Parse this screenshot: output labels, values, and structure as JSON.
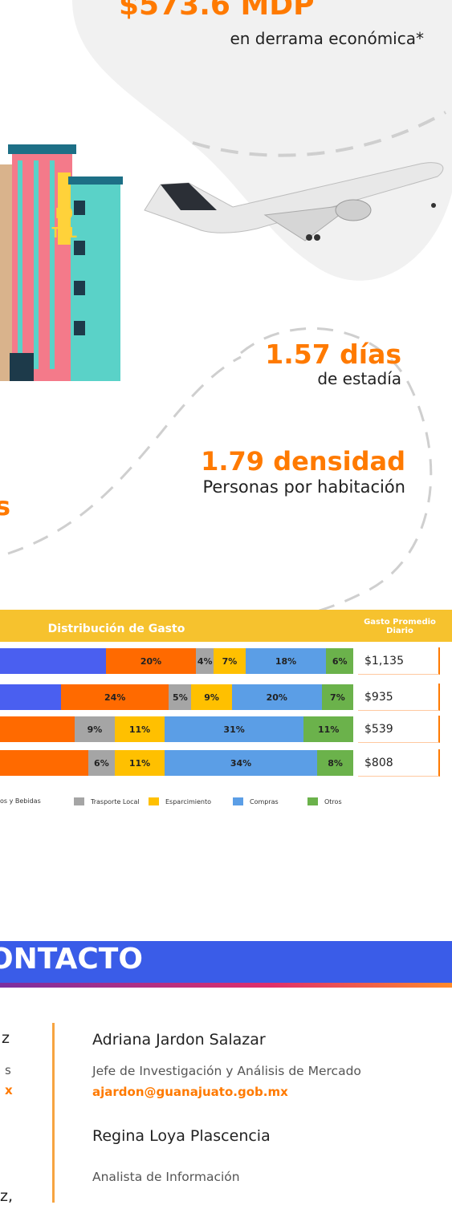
{
  "stats": {
    "amount": "$573.6 MDP",
    "amount_caption": "en derrama económica*",
    "stay": "1.57 días",
    "stay_caption": "de estadía",
    "density": "1.79 densidad",
    "density_caption": "Personas por habitación",
    "partial": "s"
  },
  "hotel_sign": [
    "HO",
    "TEL"
  ],
  "spending": {
    "title": "Distribución de Gasto",
    "daily_header": "Gasto Promedio Diario",
    "rows": [
      {
        "segments": [
          {
            "value": 20,
            "label": "20%",
            "color": "#ff6a00"
          },
          {
            "value": 4,
            "label": "4%",
            "color": "#a5a5a5"
          },
          {
            "value": 7,
            "label": "7%",
            "color": "#ffc000"
          },
          {
            "value": 18,
            "label": "18%",
            "color": "#5b9ee6"
          },
          {
            "value": 6,
            "label": "6%",
            "color": "#6bb24b"
          }
        ],
        "daily": "$1,135"
      },
      {
        "segments": [
          {
            "value": 24,
            "label": "24%",
            "color": "#ff6a00"
          },
          {
            "value": 5,
            "label": "5%",
            "color": "#a5a5a5"
          },
          {
            "value": 9,
            "label": "9%",
            "color": "#ffc000"
          },
          {
            "value": 20,
            "label": "20%",
            "color": "#5b9ee6"
          },
          {
            "value": 7,
            "label": "7%",
            "color": "#6bb24b"
          }
        ],
        "daily": "$935"
      },
      {
        "segments": [
          {
            "value": 9,
            "label": "9%",
            "color": "#a5a5a5"
          },
          {
            "value": 11,
            "label": "11%",
            "color": "#ffc000"
          },
          {
            "value": 31,
            "label": "31%",
            "color": "#5b9ee6"
          },
          {
            "value": 11,
            "label": "11%",
            "color": "#6bb24b"
          }
        ],
        "daily": "$539"
      },
      {
        "segments": [
          {
            "value": 6,
            "label": "6%",
            "color": "#a5a5a5"
          },
          {
            "value": 11,
            "label": "11%",
            "color": "#ffc000"
          },
          {
            "value": 34,
            "label": "34%",
            "color": "#5b9ee6"
          },
          {
            "value": 8,
            "label": "8%",
            "color": "#6bb24b"
          }
        ],
        "daily": "$808"
      }
    ],
    "legend": [
      {
        "label": "os y Bebidas",
        "color": "#ff6a00"
      },
      {
        "label": "Trasporte Local",
        "color": "#a5a5a5"
      },
      {
        "label": "Esparcimiento",
        "color": "#ffc000"
      },
      {
        "label": "Compras",
        "color": "#5b9ee6"
      },
      {
        "label": "Otros",
        "color": "#6bb24b"
      }
    ]
  },
  "contact": {
    "title": "ONTACTO",
    "left_fragments": [
      "z",
      "s",
      "x",
      "z,"
    ],
    "people": [
      {
        "name": "Adriana Jardon Salazar",
        "role": "Jefe de Investigación y Análisis de Mercado",
        "email": "ajardon@guanajuato.gob.mx"
      },
      {
        "name": "Regina Loya Plascencia",
        "role": "Analista de Información"
      }
    ]
  }
}
